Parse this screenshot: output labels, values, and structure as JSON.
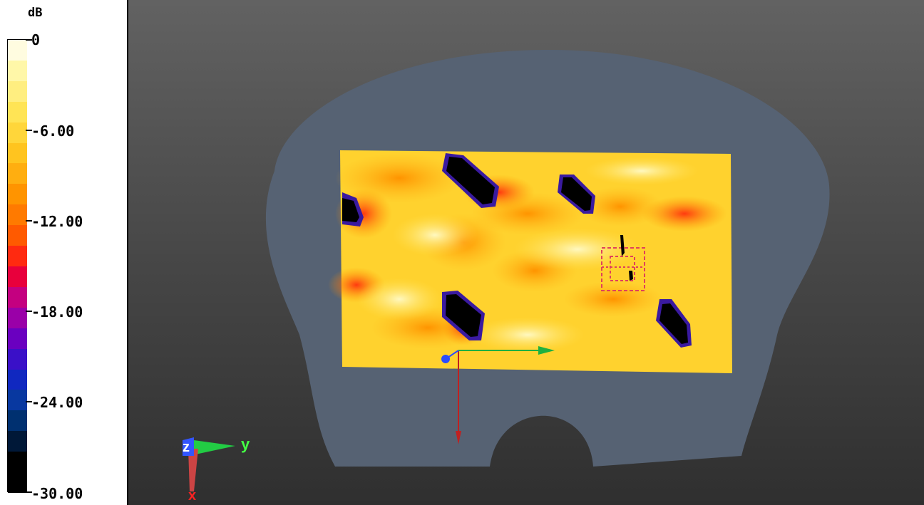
{
  "legend": {
    "unit": "dB",
    "ticks": [
      {
        "label": "0",
        "value": 0
      },
      {
        "label": "-6.00",
        "value": -6
      },
      {
        "label": "-12.00",
        "value": -12
      },
      {
        "label": "-18.00",
        "value": -18
      },
      {
        "label": "-24.00",
        "value": -24
      },
      {
        "label": "-30.00",
        "value": -30
      }
    ],
    "band_colors": [
      "#fffce0",
      "#fff7a8",
      "#ffee80",
      "#ffe455",
      "#ffd63a",
      "#ffc41f",
      "#ffae10",
      "#ff9400",
      "#ff7a00",
      "#ff5a00",
      "#ff2a10",
      "#e8003c",
      "#c40080",
      "#9a00a8",
      "#6a00c0",
      "#3a10c8",
      "#1028c0",
      "#0838a0",
      "#003070",
      "#001838",
      "#000000",
      "#000000"
    ],
    "min": -30,
    "max": 0
  },
  "viewport": {
    "axis_labels": {
      "y": "y",
      "z": "z",
      "x": "x"
    },
    "colors": {
      "phantom": "#566273",
      "axis_y": "#00cc44",
      "axis_x": "#ff2222",
      "axis_z": "#2a4cff"
    }
  }
}
